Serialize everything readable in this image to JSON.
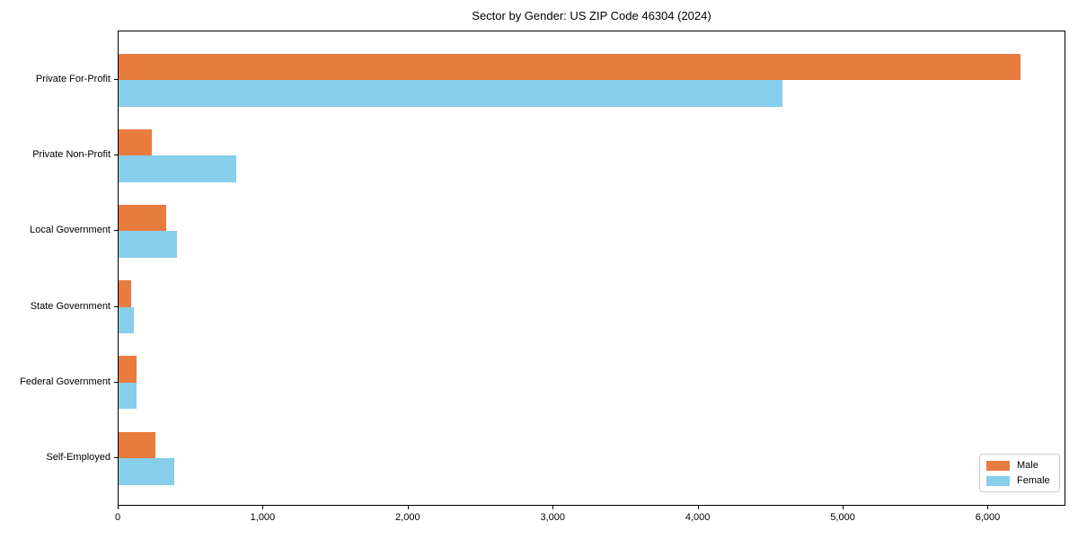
{
  "title": "Sector by Gender: US ZIP Code 46304 (2024)",
  "chart_data": {
    "type": "bar",
    "orientation": "horizontal",
    "title": "Sector by Gender: US ZIP Code 46304 (2024)",
    "categories": [
      "Private For-Profit",
      "Private Non-Profit",
      "Local Government",
      "State Government",
      "Federal Government",
      "Self-Employed"
    ],
    "series": [
      {
        "name": "Male",
        "color": "#e87b3e",
        "values": [
          6220,
          230,
          330,
          85,
          122,
          255
        ]
      },
      {
        "name": "Female",
        "color": "#87ceeb",
        "values": [
          4580,
          810,
          405,
          107,
          126,
          385
        ]
      }
    ],
    "xlabel": "",
    "ylabel": "",
    "xlim": [
      0,
      6536
    ],
    "xticks": [
      0,
      1000,
      2000,
      3000,
      4000,
      5000,
      6000
    ],
    "xtick_labels": [
      "0",
      "1,000",
      "2,000",
      "3,000",
      "4,000",
      "5,000",
      "6,000"
    ],
    "legend_position": "lower right",
    "grid": false,
    "spine_color": "#000000",
    "background_color": "#ffffff"
  }
}
